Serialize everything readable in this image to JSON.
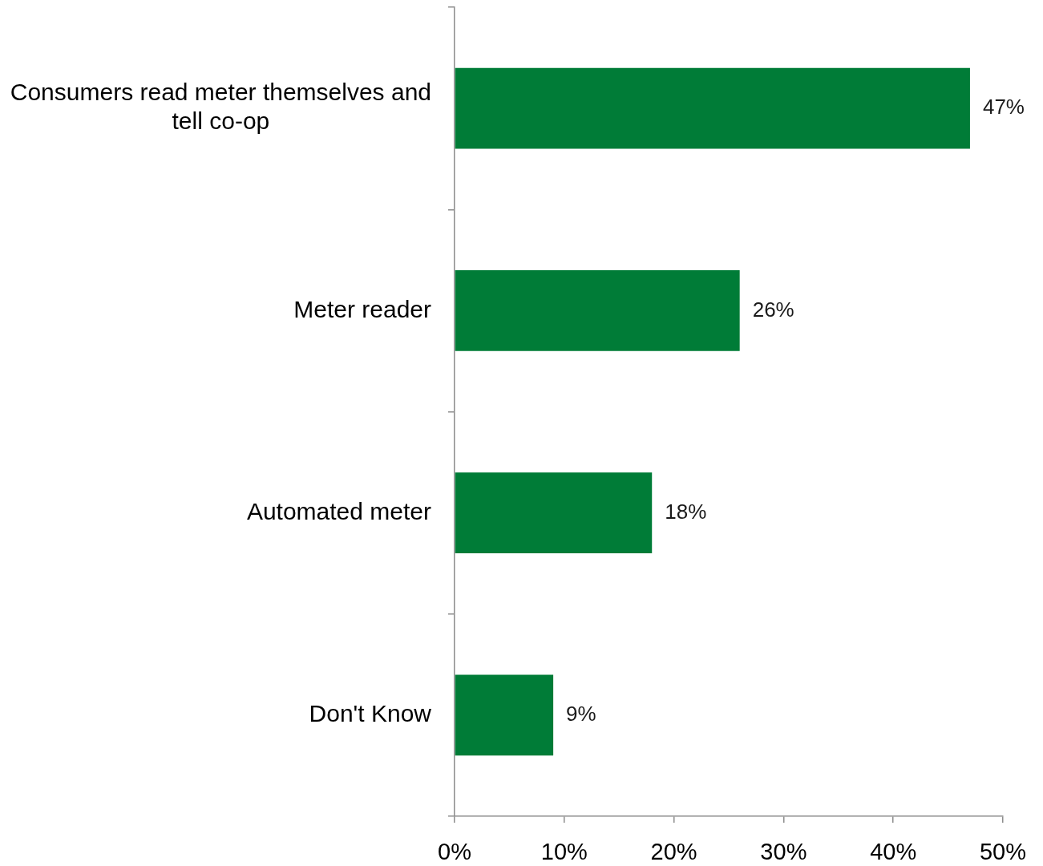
{
  "chart_data": {
    "type": "bar",
    "orientation": "horizontal",
    "categories": [
      "Consumers read meter themselves and tell co-op",
      "Meter reader",
      "Automated meter",
      "Don't Know"
    ],
    "values": [
      47,
      26,
      18,
      9
    ],
    "color": "#007c37",
    "value_labels": [
      "47%",
      "26%",
      "18%",
      "9%"
    ],
    "xlim": [
      0,
      50
    ],
    "xticks": [
      {
        "value": 0,
        "label": "0%"
      },
      {
        "value": 10,
        "label": "10%"
      },
      {
        "value": 20,
        "label": "20%"
      },
      {
        "value": 30,
        "label": "30%"
      },
      {
        "value": 40,
        "label": "40%"
      },
      {
        "value": 50,
        "label": "50%"
      }
    ],
    "grid": false,
    "legend": false
  }
}
